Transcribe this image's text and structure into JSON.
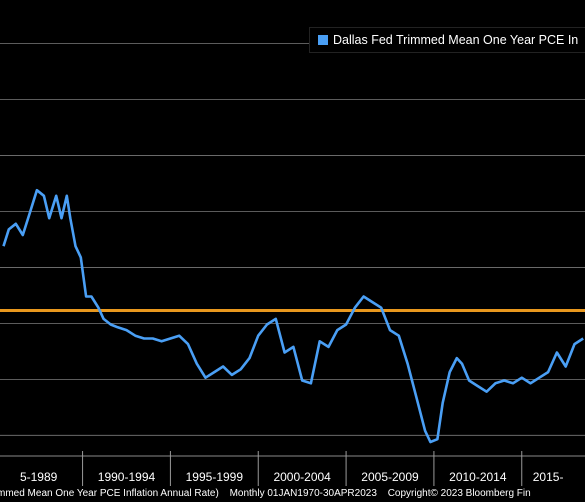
{
  "chart_data": {
    "type": "line",
    "series": [
      {
        "name": "Dallas Fed Trimmed Mean One Year PCE Inflation Annual Rate",
        "color": "#4a9ff5",
        "x": [
          1985.5,
          1985.8,
          1986.2,
          1986.6,
          1987.0,
          1987.4,
          1987.8,
          1988.1,
          1988.5,
          1988.8,
          1989.1,
          1989.3,
          1989.6,
          1989.9,
          1990.2,
          1990.5,
          1990.9,
          1991.2,
          1991.6,
          1992.0,
          1992.5,
          1993.0,
          1993.5,
          1994.0,
          1994.5,
          1995.0,
          1995.5,
          1996.0,
          1996.5,
          1997.0,
          1997.5,
          1998.0,
          1998.5,
          1999.0,
          1999.5,
          2000.0,
          2000.5,
          2001.0,
          2001.5,
          2002.0,
          2002.5,
          2003.0,
          2003.5,
          2004.0,
          2004.5,
          2005.0,
          2005.5,
          2006.0,
          2006.5,
          2007.0,
          2007.5,
          2008.0,
          2008.5,
          2009.0,
          2009.5,
          2009.8,
          2010.2,
          2010.5,
          2010.9,
          2011.3,
          2011.6,
          2012.0,
          2012.5,
          2013.0,
          2013.5,
          2014.0,
          2014.5,
          2015.0,
          2015.5,
          2016.0,
          2016.5,
          2017.0,
          2017.5,
          2018.0,
          2018.5
        ],
        "values": [
          3.3,
          3.6,
          3.7,
          3.5,
          3.9,
          4.3,
          4.2,
          3.8,
          4.2,
          3.8,
          4.2,
          3.8,
          3.3,
          3.1,
          2.4,
          2.4,
          2.2,
          2.0,
          1.9,
          1.85,
          1.8,
          1.7,
          1.65,
          1.65,
          1.6,
          1.65,
          1.7,
          1.55,
          1.2,
          0.95,
          1.05,
          1.15,
          1.0,
          1.1,
          1.3,
          1.7,
          1.9,
          2.0,
          1.4,
          1.5,
          0.9,
          0.85,
          1.6,
          1.5,
          1.8,
          1.9,
          2.2,
          2.4,
          2.3,
          2.2,
          1.8,
          1.7,
          1.2,
          0.6,
          0.0,
          -0.2,
          -0.15,
          0.5,
          1.05,
          1.3,
          1.2,
          0.9,
          0.8,
          0.7,
          0.85,
          0.9,
          0.85,
          0.95,
          0.85,
          0.95,
          1.05,
          1.4,
          1.15,
          1.55,
          1.65
        ]
      }
    ],
    "reference_line": {
      "value": 2.15,
      "color": "#e8981e"
    },
    "xlim": [
      1985.3,
      2018.6
    ],
    "ylim": [
      -0.45,
      7.7
    ],
    "y_gridlines": [
      -0.08,
      0.92,
      1.92,
      2.92,
      3.92,
      4.92,
      5.92,
      6.92
    ],
    "x_tick_labels": [
      {
        "label": "5-1989",
        "center": 1987.5,
        "sep": 1990.0
      },
      {
        "label": "1990-1994",
        "center": 1992.5,
        "sep": 1995.0
      },
      {
        "label": "1995-1999",
        "center": 1997.5,
        "sep": 2000.0
      },
      {
        "label": "2000-2004",
        "center": 2002.5,
        "sep": 2005.0
      },
      {
        "label": "2005-2009",
        "center": 2007.5,
        "sep": 2010.0
      },
      {
        "label": "2010-2014",
        "center": 2012.5,
        "sep": 2015.0
      },
      {
        "label": "2015-",
        "center": 2016.5,
        "sep": null
      }
    ],
    "grid": true,
    "legend": "top-right"
  },
  "legend": {
    "label": "Dallas Fed Trimmed Mean One Year PCE In",
    "color": "#4a9ff5"
  },
  "footer": {
    "series_text": "mmed Mean One Year PCE Inflation Annual Rate)",
    "period_text": "Monthly 01JAN1970-30APR2023",
    "copyright_text": "Copyright© 2023 Bloomberg Fin"
  }
}
